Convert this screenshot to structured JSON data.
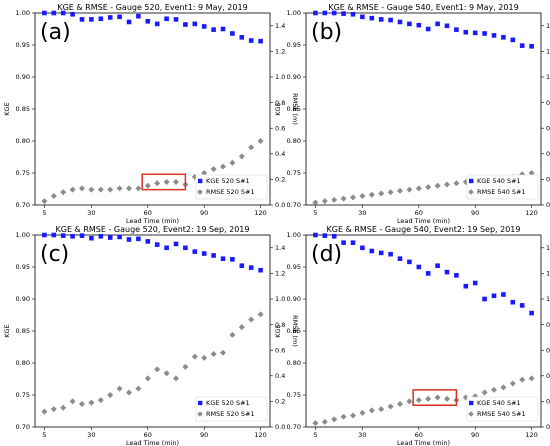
{
  "colors": {
    "kge": "#1a1aff",
    "rmse": "#8c8c8c",
    "highlight": "#e0301e"
  },
  "chart_data": [
    {
      "type": "scatter",
      "panel_label": "(a)",
      "title": "KGE & RMSE - Gauge 520, Event1:   9 May, 2019",
      "xlabel": "Lead Time (min)",
      "ylabel": "KGE",
      "y2label": "RMSE (m)",
      "xticks": [
        5,
        30,
        60,
        90,
        120
      ],
      "xlim": [
        0,
        125
      ],
      "ylim": [
        0.7,
        1.0
      ],
      "y2lim": [
        0,
        1.5
      ],
      "yticks": [
        "0.70",
        "0.75",
        "0.80",
        "0.85",
        "0.90",
        "0.95",
        "1.00"
      ],
      "y2ticks": [
        "0.0",
        "0.2",
        "0.4",
        "0.6",
        "0.8",
        "1.0",
        "1.2",
        "1.4"
      ],
      "legend": [
        "KGE 520 S#1",
        "RMSE 520 S#1"
      ],
      "legend_position": "lower-right",
      "x": [
        5,
        10,
        15,
        20,
        25,
        30,
        35,
        40,
        45,
        50,
        55,
        60,
        65,
        70,
        75,
        80,
        85,
        90,
        95,
        100,
        105,
        110,
        115,
        120
      ],
      "series": [
        {
          "name": "KGE 520 S#1",
          "axis": "left",
          "values": [
            1.0,
            1.0,
            1.0,
            0.998,
            0.99,
            0.99,
            0.991,
            0.993,
            0.994,
            0.986,
            0.995,
            0.987,
            0.983,
            0.991,
            0.99,
            0.982,
            0.983,
            0.979,
            0.974,
            0.975,
            0.968,
            0.962,
            0.957,
            0.956
          ]
        },
        {
          "name": "RMSE 520 S#1",
          "axis": "right",
          "values": [
            0.03,
            0.07,
            0.1,
            0.12,
            0.13,
            0.12,
            0.12,
            0.12,
            0.13,
            0.13,
            0.13,
            0.15,
            0.17,
            0.18,
            0.18,
            0.16,
            0.22,
            0.25,
            0.28,
            0.3,
            0.33,
            0.38,
            0.45,
            0.5
          ]
        }
      ],
      "highlight_x": [
        57,
        80
      ],
      "highlight_y2": [
        0.12,
        0.24
      ]
    },
    {
      "type": "scatter",
      "panel_label": "(b)",
      "title": "KGE & RMSE - Gauge 540, Event1:   9 May, 2019",
      "xlabel": "Lead Time (min)",
      "ylabel": "KGE",
      "y2label": "RMSE (m)",
      "xticks": [
        5,
        30,
        60,
        90,
        120
      ],
      "xlim": [
        0,
        125
      ],
      "ylim": [
        0.7,
        1.0
      ],
      "y2lim": [
        0,
        1.5
      ],
      "yticks": [
        "0.70",
        "0.75",
        "0.80",
        "0.85",
        "0.90",
        "0.95",
        "1.00"
      ],
      "y2ticks": [
        "0.0",
        "0.2",
        "0.4",
        "0.6",
        "0.8",
        "1.0",
        "1.2",
        "1.4"
      ],
      "legend": [
        "KGE 540 S#1",
        "RMSE 540 S#1"
      ],
      "legend_position": "lower-right",
      "x": [
        5,
        10,
        15,
        20,
        25,
        30,
        35,
        40,
        45,
        50,
        55,
        60,
        65,
        70,
        75,
        80,
        85,
        90,
        95,
        100,
        105,
        110,
        115,
        120
      ],
      "series": [
        {
          "name": "KGE 540 S#1",
          "axis": "left",
          "values": [
            1.0,
            1.0,
            1.0,
            0.999,
            0.998,
            0.994,
            0.992,
            0.99,
            0.989,
            0.986,
            0.983,
            0.981,
            0.975,
            0.983,
            0.98,
            0.974,
            0.97,
            0.969,
            0.968,
            0.965,
            0.962,
            0.958,
            0.949,
            0.948
          ]
        },
        {
          "name": "RMSE 540 S#1",
          "axis": "right",
          "values": [
            0.02,
            0.03,
            0.04,
            0.05,
            0.06,
            0.07,
            0.08,
            0.09,
            0.1,
            0.11,
            0.12,
            0.13,
            0.14,
            0.15,
            0.16,
            0.17,
            0.18,
            0.18,
            0.19,
            0.2,
            0.21,
            0.22,
            0.24,
            0.25
          ]
        }
      ]
    },
    {
      "type": "scatter",
      "panel_label": "(c)",
      "title": "KGE & RMSE - Gauge 520, Event2:   19 Sep, 2019",
      "xlabel": "Lead Time (min)",
      "ylabel": "KGE",
      "y2label": "RMSE (m)",
      "xticks": [
        5,
        30,
        60,
        90,
        120
      ],
      "xlim": [
        0,
        125
      ],
      "ylim": [
        0.7,
        1.0
      ],
      "y2lim": [
        0,
        1.5
      ],
      "yticks": [
        "0.70",
        "0.75",
        "0.80",
        "0.85",
        "0.90",
        "0.95",
        "1.00"
      ],
      "y2ticks": [
        "0.0",
        "0.2",
        "0.4",
        "0.6",
        "0.8",
        "1.0",
        "1.2",
        "1.4"
      ],
      "legend": [
        "KGE 520 S#1",
        "RMSE 520 S#1"
      ],
      "legend_position": "lower-right",
      "x": [
        5,
        10,
        15,
        20,
        25,
        30,
        35,
        40,
        45,
        50,
        55,
        60,
        65,
        70,
        75,
        80,
        85,
        90,
        95,
        100,
        105,
        110,
        115,
        120
      ],
      "series": [
        {
          "name": "KGE 520 S#1",
          "axis": "left",
          "values": [
            1.0,
            1.0,
            0.999,
            0.998,
            0.999,
            0.995,
            0.998,
            0.996,
            0.997,
            0.993,
            0.994,
            0.99,
            0.985,
            0.98,
            0.986,
            0.98,
            0.974,
            0.971,
            0.968,
            0.963,
            0.962,
            0.952,
            0.949,
            0.945
          ]
        },
        {
          "name": "RMSE 520 S#1",
          "axis": "right",
          "values": [
            0.12,
            0.14,
            0.15,
            0.2,
            0.18,
            0.19,
            0.21,
            0.25,
            0.3,
            0.27,
            0.3,
            0.38,
            0.45,
            0.42,
            0.38,
            0.47,
            0.55,
            0.54,
            0.57,
            0.58,
            0.72,
            0.78,
            0.84,
            0.88
          ]
        }
      ]
    },
    {
      "type": "scatter",
      "panel_label": "(d)",
      "title": "KGE & RMSE - Gauge 540, Event2:   19 Sep, 2019",
      "xlabel": "Lead Time (min)",
      "ylabel": "KGE",
      "y2label": "RMSE (m)",
      "xticks": [
        5,
        30,
        60,
        90,
        120
      ],
      "xlim": [
        0,
        125
      ],
      "ylim": [
        0.7,
        1.0
      ],
      "y2lim": [
        0,
        1.5
      ],
      "yticks": [
        "0.70",
        "0.75",
        "0.80",
        "0.85",
        "0.90",
        "0.95",
        "1.00"
      ],
      "y2ticks": [
        "0.0",
        "0.2",
        "0.4",
        "0.6",
        "0.8",
        "1.0",
        "1.2",
        "1.4"
      ],
      "legend": [
        "KGE 540 S#1",
        "RMSE 540 S#1"
      ],
      "legend_position": "lower-right",
      "x": [
        5,
        10,
        15,
        20,
        25,
        30,
        35,
        40,
        45,
        50,
        55,
        60,
        65,
        70,
        75,
        80,
        85,
        90,
        95,
        100,
        105,
        110,
        115,
        120
      ],
      "series": [
        {
          "name": "KGE 540 S#1",
          "axis": "left",
          "values": [
            1.0,
            0.999,
            0.998,
            0.988,
            0.988,
            0.98,
            0.975,
            0.972,
            0.97,
            0.963,
            0.958,
            0.95,
            0.94,
            0.952,
            0.942,
            0.937,
            0.92,
            0.925,
            0.9,
            0.905,
            0.907,
            0.895,
            0.89,
            0.878
          ]
        },
        {
          "name": "RMSE 540 S#1",
          "axis": "right",
          "values": [
            0.03,
            0.04,
            0.06,
            0.08,
            0.09,
            0.11,
            0.13,
            0.14,
            0.16,
            0.18,
            0.2,
            0.21,
            0.22,
            0.23,
            0.22,
            0.21,
            0.23,
            0.24,
            0.27,
            0.29,
            0.31,
            0.34,
            0.37,
            0.38
          ]
        }
      ],
      "highlight_x": [
        57,
        80
      ],
      "highlight_y2": [
        0.17,
        0.29
      ]
    }
  ]
}
